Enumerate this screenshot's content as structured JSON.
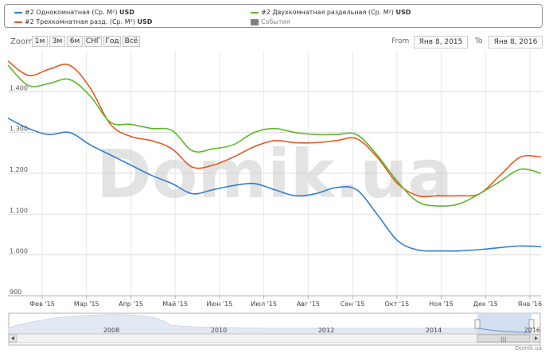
{
  "legend": {
    "items": [
      {
        "label": "#2 Однокомнатная (Ср. М²)",
        "unit": "USD",
        "color": "#2f7ed8"
      },
      {
        "label": "#2 Трехкомнатная разд. (Ср. М²)",
        "unit": "USD",
        "color": "#e8571f"
      },
      {
        "label": "#2 Двухкомнатная раздельная (Ср. М²)",
        "unit": "USD",
        "color": "#5cb82a"
      },
      {
        "label": "События",
        "unit": "",
        "color": "#808080"
      }
    ]
  },
  "toolbar": {
    "zoom_label": "Zoom",
    "zoom_buttons": [
      "1м",
      "3м",
      "6м",
      "СНГ",
      "Год",
      "Всё"
    ],
    "from_label": "From",
    "from_value": "Янв 8, 2015",
    "to_label": "To",
    "to_value": "Янв 8, 2016"
  },
  "watermark": "Domik.ua",
  "credit": "Domik.ua",
  "chart_data": {
    "type": "line",
    "x_tick_labels": [
      "Фев '15",
      "Мар '15",
      "Апр '15",
      "Май '15",
      "Июн '15",
      "Июл '15",
      "Авг '15",
      "Сен '15",
      "Окт '15",
      "Ноя '15",
      "Дек '15",
      "Янв '16"
    ],
    "y_tick_labels": [
      "900",
      "1.000",
      "1.100",
      "1.200",
      "1.300",
      "1.400"
    ],
    "ylim": [
      900,
      1500
    ],
    "grid": true,
    "legend_position": "top",
    "x": [
      "Янв 8 '15",
      "Янв 15 '15",
      "Янв 22 '15",
      "Фев 1 '15",
      "Фев 15 '15",
      "Мар 1 '15",
      "Мар 15 '15",
      "Апр 1 '15",
      "Апр 15 '15",
      "Май 1 '15",
      "Май 15 '15",
      "Июн 1 '15",
      "Июн 15 '15",
      "Июл 1 '15",
      "Июл 15 '15",
      "Авг 1 '15",
      "Авг 15 '15",
      "Сен 1 '15",
      "Сен 15 '15",
      "Окт 1 '15",
      "Окт 15 '15",
      "Ноя 1 '15",
      "Ноя 15 '15",
      "Дек 1 '15",
      "Дек 15 '15",
      "Янв 1 '16",
      "Янв 8 '16"
    ],
    "series": [
      {
        "name": "#2 Однокомнатная (Ср. М²)",
        "color": "#2f7ed8",
        "values": [
          1335,
          1310,
          1295,
          1300,
          1270,
          1245,
          1220,
          1195,
          1175,
          1150,
          1160,
          1170,
          1175,
          1160,
          1145,
          1150,
          1165,
          1160,
          1100,
          1035,
          1012,
          1010,
          1010,
          1013,
          1018,
          1022,
          1020
        ]
      },
      {
        "name": "#2 Трехкомнатная разд. (Ср. М²)",
        "color": "#e8571f",
        "values": [
          1475,
          1440,
          1455,
          1465,
          1410,
          1320,
          1290,
          1280,
          1260,
          1215,
          1220,
          1240,
          1265,
          1280,
          1275,
          1275,
          1280,
          1285,
          1240,
          1175,
          1145,
          1145,
          1145,
          1150,
          1195,
          1240,
          1240
        ]
      },
      {
        "name": "#2 Двухкомнатная раздельная (Ср. М²)",
        "color": "#5cb82a",
        "values": [
          1465,
          1415,
          1420,
          1430,
          1390,
          1325,
          1320,
          1310,
          1305,
          1255,
          1260,
          1270,
          1300,
          1310,
          1300,
          1295,
          1295,
          1295,
          1245,
          1180,
          1130,
          1120,
          1125,
          1150,
          1180,
          1210,
          1200
        ]
      }
    ],
    "navigator": {
      "year_labels": [
        "2008",
        "2010",
        "2012",
        "2014",
        "2016"
      ]
    }
  }
}
